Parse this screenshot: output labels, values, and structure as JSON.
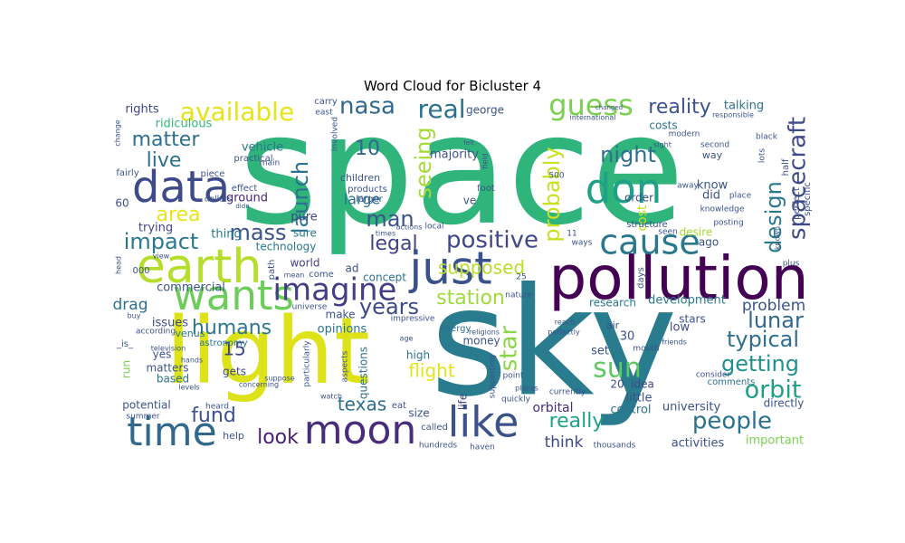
{
  "chart_data": {
    "type": "wordcloud",
    "title": "Word Cloud for Bicluster 4",
    "words": [
      {
        "text": "space",
        "color": "#2fb47c"
      },
      {
        "text": "sky",
        "color": "#287c8e"
      },
      {
        "text": "light",
        "color": "#dde318"
      },
      {
        "text": "pollution",
        "color": "#440154"
      },
      {
        "text": "just",
        "color": "#3b518b"
      },
      {
        "text": "earth",
        "color": "#b5de2b"
      },
      {
        "text": "wants",
        "color": "#6ccd5a"
      },
      {
        "text": "cause",
        "color": "#2a788e"
      },
      {
        "text": "data",
        "color": "#3e4a89"
      },
      {
        "text": "time",
        "color": "#31688e"
      },
      {
        "text": "moon",
        "color": "#472d7b"
      },
      {
        "text": "like",
        "color": "#3b528b"
      },
      {
        "text": "don",
        "color": "#1fa188"
      },
      {
        "text": "imagine",
        "color": "#433e85"
      },
      {
        "text": "spacecraft",
        "color": "#3e4989"
      },
      {
        "text": "available",
        "color": "#e5e419"
      },
      {
        "text": "guess",
        "color": "#7ad151"
      },
      {
        "text": "positive",
        "color": "#3f4788"
      },
      {
        "text": "orbit",
        "color": "#1f9e89"
      },
      {
        "text": "people",
        "color": "#2c728e"
      },
      {
        "text": "getting",
        "color": "#21918c"
      },
      {
        "text": "sun",
        "color": "#5ec962"
      },
      {
        "text": "real",
        "color": "#2c728e"
      },
      {
        "text": "nasa",
        "color": "#31688e"
      },
      {
        "text": "launch",
        "color": "#2c728e"
      },
      {
        "text": "seeing",
        "color": "#a5db36"
      },
      {
        "text": "night",
        "color": "#2d708e"
      },
      {
        "text": "reality",
        "color": "#3b528b"
      },
      {
        "text": "probably",
        "color": "#c8e020"
      },
      {
        "text": "design",
        "color": "#2a788e"
      },
      {
        "text": "matter",
        "color": "#2d708e"
      },
      {
        "text": "live",
        "color": "#2d708e"
      },
      {
        "text": "area",
        "color": "#e7e419"
      },
      {
        "text": "impact",
        "color": "#2a788e"
      },
      {
        "text": "mass",
        "color": "#3b528b"
      },
      {
        "text": "legal",
        "color": "#404387"
      },
      {
        "text": "man",
        "color": "#3b528b"
      },
      {
        "text": "years",
        "color": "#3e4989"
      },
      {
        "text": "station",
        "color": "#9fda3a"
      },
      {
        "text": "star",
        "color": "#8bd646"
      },
      {
        "text": "supposed",
        "color": "#b8de29"
      },
      {
        "text": "lunar",
        "color": "#31688e"
      },
      {
        "text": "typical",
        "color": "#2d708e"
      },
      {
        "text": "problem",
        "color": "#3b528b"
      },
      {
        "text": "humans",
        "color": "#2a788e"
      },
      {
        "text": "look",
        "color": "#481f70"
      },
      {
        "text": "fund",
        "color": "#3b528b"
      },
      {
        "text": "texas",
        "color": "#2d708e"
      },
      {
        "text": "flight",
        "color": "#e2e418"
      },
      {
        "text": "really",
        "color": "#1fa188"
      },
      {
        "text": "think",
        "color": "#3e4989"
      },
      {
        "text": "10",
        "color": "#31688e"
      },
      {
        "text": "15",
        "color": "#3e4989"
      },
      {
        "text": "drag",
        "color": "#2d708e"
      },
      {
        "text": "commercial",
        "color": "#3b528b"
      },
      {
        "text": "technology",
        "color": "#2a788e"
      },
      {
        "text": "thing",
        "color": "#2a788e"
      },
      {
        "text": "trying",
        "color": "#3e4989"
      },
      {
        "text": "ground",
        "color": "#481f70"
      },
      {
        "text": "vehicle",
        "color": "#2a788e"
      },
      {
        "text": "ridiculous",
        "color": "#35b779"
      },
      {
        "text": "rights",
        "color": "#404387"
      },
      {
        "text": "majority",
        "color": "#3b528b"
      },
      {
        "text": "large",
        "color": "#2c728e"
      },
      {
        "text": "pure",
        "color": "#3e4989"
      },
      {
        "text": "world",
        "color": "#433e85"
      },
      {
        "text": "sure",
        "color": "#2a788e"
      },
      {
        "text": "concept",
        "color": "#2d708e"
      },
      {
        "text": "opinions",
        "color": "#2c728e"
      },
      {
        "text": "make",
        "color": "#3b528b"
      },
      {
        "text": "questions",
        "color": "#2d708e"
      },
      {
        "text": "high",
        "color": "#2d708e"
      },
      {
        "text": "size",
        "color": "#3b528b"
      },
      {
        "text": "money",
        "color": "#3b528b"
      },
      {
        "text": "life",
        "color": "#404387"
      },
      {
        "text": "orbital",
        "color": "#472d7b"
      },
      {
        "text": "little",
        "color": "#3b528b"
      },
      {
        "text": "control",
        "color": "#2c728e"
      },
      {
        "text": "idea",
        "color": "#3e4989"
      },
      {
        "text": "university",
        "color": "#3b528b"
      },
      {
        "text": "activities",
        "color": "#3b528b"
      },
      {
        "text": "important",
        "color": "#7ad151"
      },
      {
        "text": "directly",
        "color": "#3b528b"
      },
      {
        "text": "comments",
        "color": "#2c728e"
      },
      {
        "text": "development",
        "color": "#2a788e"
      },
      {
        "text": "research",
        "color": "#2a788e"
      },
      {
        "text": "stars",
        "color": "#3b528b"
      },
      {
        "text": "low",
        "color": "#3e4989"
      },
      {
        "text": "set",
        "color": "#3b528b"
      },
      {
        "text": "30",
        "color": "#3b528b"
      },
      {
        "text": "20",
        "color": "#3e4989"
      },
      {
        "text": "ago",
        "color": "#3b528b"
      },
      {
        "text": "desire",
        "color": "#a5db36"
      },
      {
        "text": "cost",
        "color": "#c2df23"
      },
      {
        "text": "costs",
        "color": "#2c728e"
      },
      {
        "text": "know",
        "color": "#3b528b"
      },
      {
        "text": "did",
        "color": "#3b528b"
      },
      {
        "text": "talking",
        "color": "#2d708e"
      },
      {
        "text": "george",
        "color": "#3b528b"
      },
      {
        "text": "order",
        "color": "#3b528b"
      },
      {
        "text": "issues",
        "color": "#3e4989"
      },
      {
        "text": "yes",
        "color": "#3b528b"
      },
      {
        "text": "based",
        "color": "#2c728e"
      },
      {
        "text": "matters",
        "color": "#3b528b"
      },
      {
        "text": "gets",
        "color": "#3e4989"
      },
      {
        "text": "run",
        "color": "#7ad151"
      },
      {
        "text": "potential",
        "color": "#3b528b"
      },
      {
        "text": "help",
        "color": "#3b528b"
      },
      {
        "text": "eat",
        "color": "#3b528b"
      },
      {
        "text": "energy",
        "color": "#2c728e"
      },
      {
        "text": "ve",
        "color": "#3b528b"
      },
      {
        "text": "foot",
        "color": "#3b528b"
      },
      {
        "text": "children",
        "color": "#3b528b"
      },
      {
        "text": "products",
        "color": "#3b528b"
      },
      {
        "text": "larger",
        "color": "#3b528b"
      },
      {
        "text": "60",
        "color": "#3b528b"
      },
      {
        "text": "effect",
        "color": "#3b528b"
      },
      {
        "text": "piece",
        "color": "#3b528b"
      },
      {
        "text": "fairly",
        "color": "#3b528b"
      },
      {
        "text": "practical",
        "color": "#3b528b"
      },
      {
        "text": "main",
        "color": "#3b528b"
      },
      {
        "text": "carry",
        "color": "#3b528b"
      },
      {
        "text": "east",
        "color": "#3b528b"
      },
      {
        "text": "involved",
        "color": "#3b528b"
      },
      {
        "text": "universe",
        "color": "#3b528b"
      },
      {
        "text": "astronomy",
        "color": "#2a788e"
      },
      {
        "text": "venus",
        "color": "#2a788e"
      },
      {
        "text": "nature",
        "color": "#3b528b"
      },
      {
        "text": "path",
        "color": "#3b528b"
      },
      {
        "text": "come",
        "color": "#3b528b"
      },
      {
        "text": "mean",
        "color": "#3b528b"
      },
      {
        "text": "ad",
        "color": "#3b528b"
      },
      {
        "text": "000",
        "color": "#3b528b"
      },
      {
        "text": "view",
        "color": "#3b528b"
      },
      {
        "text": "buy",
        "color": "#3b528b"
      },
      {
        "text": "_is_",
        "color": "#3b528b"
      },
      {
        "text": "500",
        "color": "#3b528b"
      },
      {
        "text": "11",
        "color": "#3b528b"
      },
      {
        "text": "25",
        "color": "#3b528b"
      },
      {
        "text": "ways",
        "color": "#3b528b"
      },
      {
        "text": "structure",
        "color": "#3b528b"
      },
      {
        "text": "seen",
        "color": "#3b528b"
      },
      {
        "text": "days",
        "color": "#3b528b"
      },
      {
        "text": "mouth",
        "color": "#3b528b"
      },
      {
        "text": "air",
        "color": "#3b528b"
      },
      {
        "text": "reach",
        "color": "#3b528b"
      },
      {
        "text": "friends",
        "color": "#3b528b"
      },
      {
        "text": "consider",
        "color": "#3b528b"
      },
      {
        "text": "plus",
        "color": "#3b528b"
      },
      {
        "text": "known",
        "color": "#3b528b"
      },
      {
        "text": "half",
        "color": "#3b528b"
      },
      {
        "text": "lots",
        "color": "#3b528b"
      },
      {
        "text": "black",
        "color": "#3b528b"
      },
      {
        "text": "specific",
        "color": "#3b528b"
      },
      {
        "text": "perfect",
        "color": "#3b528b"
      },
      {
        "text": "place",
        "color": "#3b528b"
      },
      {
        "text": "away",
        "color": "#3b528b"
      },
      {
        "text": "knowledge",
        "color": "#3b528b"
      },
      {
        "text": "posting",
        "color": "#3b528b"
      },
      {
        "text": "way",
        "color": "#3b528b"
      },
      {
        "text": "second",
        "color": "#3b528b"
      },
      {
        "text": "modern",
        "color": "#3b528b"
      },
      {
        "text": "sight",
        "color": "#3b528b"
      },
      {
        "text": "international",
        "color": "#3b528b"
      },
      {
        "text": "changed",
        "color": "#3b528b"
      },
      {
        "text": "responsible",
        "color": "#3b528b"
      },
      {
        "text": "change",
        "color": "#3b528b"
      },
      {
        "text": "actions",
        "color": "#3b528b"
      },
      {
        "text": "local",
        "color": "#3b528b"
      },
      {
        "text": "times",
        "color": "#3b528b"
      },
      {
        "text": "field",
        "color": "#3b528b"
      },
      {
        "text": "felt",
        "color": "#3b528b"
      },
      {
        "text": "dollars",
        "color": "#3b528b"
      },
      {
        "text": "didn",
        "color": "#3b528b"
      },
      {
        "text": "according",
        "color": "#3b528b"
      },
      {
        "text": "head",
        "color": "#3b528b"
      },
      {
        "text": "television",
        "color": "#3b528b"
      },
      {
        "text": "hands",
        "color": "#3b528b"
      },
      {
        "text": "levels",
        "color": "#3b528b"
      },
      {
        "text": "heard",
        "color": "#3b528b"
      },
      {
        "text": "summer",
        "color": "#3b528b"
      },
      {
        "text": "concerning",
        "color": "#3b528b"
      },
      {
        "text": "suppose",
        "color": "#3b528b"
      },
      {
        "text": "particularly",
        "color": "#3b528b"
      },
      {
        "text": "watch",
        "color": "#3b528b"
      },
      {
        "text": "aspects",
        "color": "#3b528b"
      },
      {
        "text": "age",
        "color": "#3b528b"
      },
      {
        "text": "impressive",
        "color": "#3b528b"
      },
      {
        "text": "called",
        "color": "#3b528b"
      },
      {
        "text": "hundreds",
        "color": "#3b528b"
      },
      {
        "text": "haven",
        "color": "#3b528b"
      },
      {
        "text": "supporting",
        "color": "#3b528b"
      },
      {
        "text": "point",
        "color": "#3b528b"
      },
      {
        "text": "places",
        "color": "#3b528b"
      },
      {
        "text": "quickly",
        "color": "#3b528b"
      },
      {
        "text": "currently",
        "color": "#3b528b"
      },
      {
        "text": "perfectly",
        "color": "#3b528b"
      },
      {
        "text": "religions",
        "color": "#3b528b"
      },
      {
        "text": "thousands",
        "color": "#3b528b"
      }
    ]
  }
}
